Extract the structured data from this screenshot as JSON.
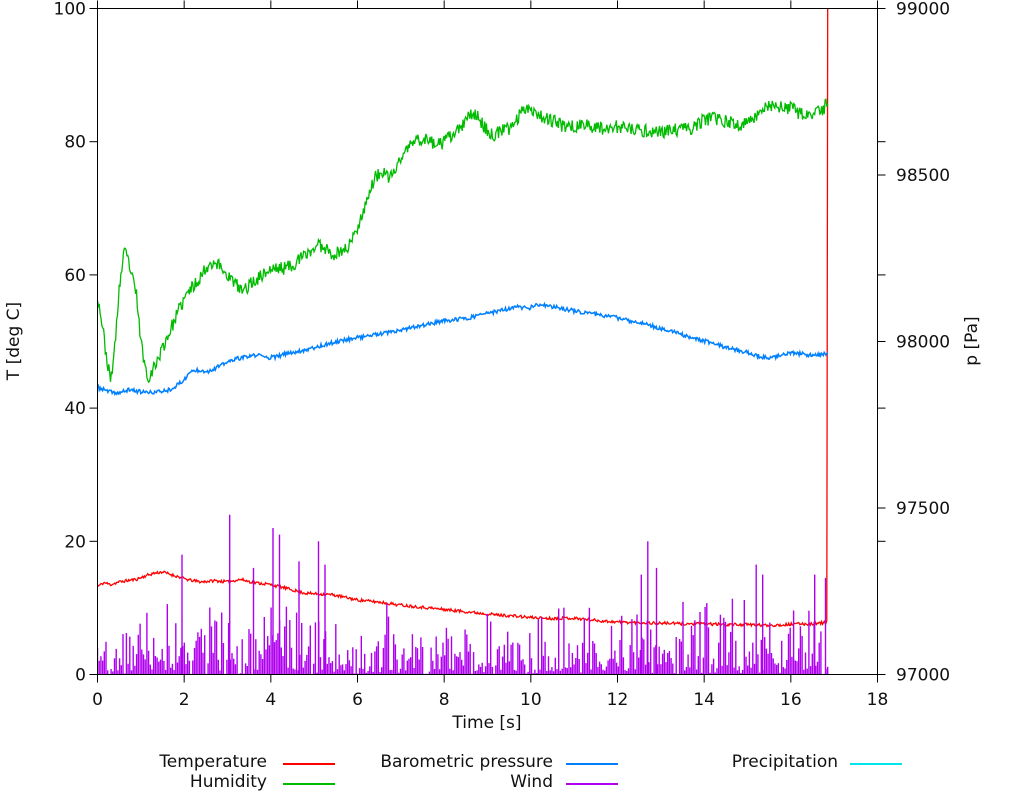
{
  "figure": {
    "background": "#ffffff",
    "plot_border_color": "#000000",
    "tick_label_color": "#111111"
  },
  "axes": {
    "x": {
      "title": "Time [s]",
      "min": 0,
      "max": 18,
      "tick_values": [
        0,
        2,
        4,
        6,
        8,
        10,
        12,
        14,
        16,
        18
      ],
      "tick_labels": [
        "0",
        "2",
        "4",
        "6",
        "8",
        "10",
        "12",
        "14",
        "16",
        "18"
      ]
    },
    "y_left": {
      "title": "T [deg C]",
      "min": 0,
      "max": 100,
      "tick_values": [
        0,
        20,
        40,
        60,
        80,
        100
      ],
      "tick_labels": [
        "0",
        "20",
        "40",
        "60",
        "80",
        "100"
      ]
    },
    "y_right": {
      "title": "p [Pa]",
      "min": 97000,
      "max": 99000,
      "tick_values": [
        97000,
        97500,
        98000,
        98500,
        99000
      ],
      "tick_labels": [
        "97000",
        "97500",
        "98000",
        "98500",
        "99000"
      ],
      "mirrored_left_tick_values": [
        20,
        40,
        60,
        80
      ]
    }
  },
  "legend": {
    "position": "below-plot",
    "entries": [
      {
        "label": "Temperature",
        "color": "#ff0000"
      },
      {
        "label": "Humidity",
        "color": "#00bb00"
      },
      {
        "label": "Barometric pressure",
        "color": "#0080ff"
      },
      {
        "label": "Wind",
        "color": "#b000f0"
      },
      {
        "label": "Precipitation",
        "color": "#00e5ee"
      }
    ]
  },
  "chart_data": {
    "type": "line",
    "title": "",
    "xlabel": "Time [s]",
    "ylabel_left": "T [deg C]",
    "ylabel_right": "p [Pa]",
    "x_range": [
      0,
      18
    ],
    "y_left_range": [
      0,
      100
    ],
    "y_right_range": [
      97000,
      99000
    ],
    "grid": false,
    "data_end_time": 16.85,
    "series": [
      {
        "name": "Temperature",
        "color": "#ff0000",
        "axis": "left",
        "width": 1.3,
        "noise": 0.22,
        "seed": 11,
        "note": "ends with vertical spike to 100 at t=16.85",
        "keypoints": [
          [
            0,
            13.2
          ],
          [
            0.15,
            13.8
          ],
          [
            0.3,
            13.5
          ],
          [
            0.5,
            13.9
          ],
          [
            0.7,
            14.1
          ],
          [
            0.9,
            14.3
          ],
          [
            1.1,
            14.8
          ],
          [
            1.3,
            15.2
          ],
          [
            1.5,
            15.4
          ],
          [
            1.7,
            15.0
          ],
          [
            1.9,
            14.6
          ],
          [
            2.1,
            14.2
          ],
          [
            2.4,
            13.9
          ],
          [
            2.7,
            14.1
          ],
          [
            3.0,
            13.9
          ],
          [
            3.3,
            14.3
          ],
          [
            3.6,
            13.8
          ],
          [
            3.9,
            13.6
          ],
          [
            4.2,
            13.2
          ],
          [
            4.5,
            12.7
          ],
          [
            4.8,
            12.2
          ],
          [
            5.1,
            12.1
          ],
          [
            5.4,
            12.0
          ],
          [
            5.7,
            11.6
          ],
          [
            6.0,
            11.2
          ],
          [
            6.3,
            11.0
          ],
          [
            6.6,
            10.8
          ],
          [
            6.9,
            10.5
          ],
          [
            7.2,
            10.3
          ],
          [
            7.5,
            10.1
          ],
          [
            7.8,
            9.9
          ],
          [
            8.1,
            9.7
          ],
          [
            8.4,
            9.5
          ],
          [
            8.7,
            9.3
          ],
          [
            9.0,
            9.1
          ],
          [
            9.3,
            8.9
          ],
          [
            9.6,
            8.8
          ],
          [
            9.9,
            8.6
          ],
          [
            10.2,
            8.5
          ],
          [
            10.5,
            8.4
          ],
          [
            10.8,
            8.5
          ],
          [
            11.1,
            8.4
          ],
          [
            11.4,
            8.2
          ],
          [
            11.7,
            8.0
          ],
          [
            12.0,
            7.9
          ],
          [
            12.3,
            7.8
          ],
          [
            12.6,
            7.8
          ],
          [
            12.9,
            7.7
          ],
          [
            13.2,
            7.7
          ],
          [
            13.5,
            7.6
          ],
          [
            13.8,
            7.6
          ],
          [
            14.1,
            7.6
          ],
          [
            14.4,
            7.5
          ],
          [
            14.7,
            7.5
          ],
          [
            15.0,
            7.5
          ],
          [
            15.3,
            7.4
          ],
          [
            15.6,
            7.4
          ],
          [
            15.9,
            7.5
          ],
          [
            16.2,
            7.6
          ],
          [
            16.5,
            7.6
          ],
          [
            16.8,
            7.8
          ],
          [
            16.84,
            8.0
          ],
          [
            16.85,
            100
          ]
        ]
      },
      {
        "name": "Humidity",
        "color": "#00bb00",
        "axis": "left",
        "width": 1.3,
        "noise": 1.0,
        "seed": 23,
        "keypoints": [
          [
            0,
            57
          ],
          [
            0.1,
            53
          ],
          [
            0.2,
            48
          ],
          [
            0.3,
            44
          ],
          [
            0.4,
            49
          ],
          [
            0.5,
            58
          ],
          [
            0.62,
            63.5
          ],
          [
            0.72,
            62
          ],
          [
            0.8,
            59.5
          ],
          [
            0.9,
            57
          ],
          [
            1.0,
            50
          ],
          [
            1.15,
            44.5
          ],
          [
            1.3,
            46
          ],
          [
            1.5,
            49
          ],
          [
            1.7,
            52
          ],
          [
            1.9,
            55
          ],
          [
            2.1,
            57.5
          ],
          [
            2.3,
            59
          ],
          [
            2.5,
            61
          ],
          [
            2.65,
            62
          ],
          [
            2.8,
            61.5
          ],
          [
            3.0,
            60
          ],
          [
            3.2,
            58.5
          ],
          [
            3.35,
            57.5
          ],
          [
            3.5,
            58.5
          ],
          [
            3.7,
            59.5
          ],
          [
            3.9,
            60.5
          ],
          [
            4.1,
            61
          ],
          [
            4.3,
            61
          ],
          [
            4.5,
            61.5
          ],
          [
            4.7,
            62.5
          ],
          [
            4.9,
            63.5
          ],
          [
            5.1,
            64.5
          ],
          [
            5.3,
            64
          ],
          [
            5.45,
            63
          ],
          [
            5.6,
            63.5
          ],
          [
            5.75,
            64
          ],
          [
            5.9,
            65.5
          ],
          [
            6.1,
            69
          ],
          [
            6.25,
            72
          ],
          [
            6.4,
            74.5
          ],
          [
            6.55,
            75.5
          ],
          [
            6.7,
            74.5
          ],
          [
            6.85,
            75.5
          ],
          [
            7.0,
            77.5
          ],
          [
            7.15,
            79
          ],
          [
            7.3,
            80
          ],
          [
            7.5,
            80.5
          ],
          [
            7.7,
            80
          ],
          [
            7.9,
            79.5
          ],
          [
            8.1,
            80.5
          ],
          [
            8.3,
            81.5
          ],
          [
            8.5,
            83
          ],
          [
            8.65,
            84.5
          ],
          [
            8.8,
            83.5
          ],
          [
            9.0,
            81.5
          ],
          [
            9.1,
            81
          ],
          [
            9.3,
            81.5
          ],
          [
            9.5,
            82
          ],
          [
            9.7,
            83.5
          ],
          [
            9.85,
            85.3
          ],
          [
            10.0,
            85
          ],
          [
            10.2,
            84
          ],
          [
            10.45,
            83.3
          ],
          [
            10.7,
            82.5
          ],
          [
            11.0,
            82.3
          ],
          [
            11.3,
            82.5
          ],
          [
            11.6,
            82
          ],
          [
            11.9,
            82.3
          ],
          [
            12.2,
            82
          ],
          [
            12.5,
            81.6
          ],
          [
            12.8,
            81.6
          ],
          [
            13.1,
            81.5
          ],
          [
            13.4,
            81.8
          ],
          [
            13.7,
            82
          ],
          [
            14.0,
            83.3
          ],
          [
            14.2,
            83.5
          ],
          [
            14.5,
            83
          ],
          [
            14.8,
            82.5
          ],
          [
            15.0,
            82.8
          ],
          [
            15.2,
            84
          ],
          [
            15.4,
            85.3
          ],
          [
            15.6,
            85.5
          ],
          [
            15.8,
            85
          ],
          [
            16.0,
            85
          ],
          [
            16.2,
            84.3
          ],
          [
            16.4,
            83.8
          ],
          [
            16.6,
            84.3
          ],
          [
            16.75,
            84.8
          ],
          [
            16.85,
            86.2
          ]
        ]
      },
      {
        "name": "Barometric pressure",
        "color": "#0080ff",
        "axis": "right",
        "width": 1.5,
        "noise": 6,
        "seed": 37,
        "keypoints": [
          [
            0,
            97862
          ],
          [
            0.3,
            97848
          ],
          [
            0.5,
            97845
          ],
          [
            0.75,
            97856
          ],
          [
            0.95,
            97850
          ],
          [
            1.2,
            97846
          ],
          [
            1.45,
            97850
          ],
          [
            1.65,
            97855
          ],
          [
            1.8,
            97865
          ],
          [
            2.0,
            97885
          ],
          [
            2.15,
            97910
          ],
          [
            2.35,
            97915
          ],
          [
            2.55,
            97910
          ],
          [
            2.75,
            97922
          ],
          [
            3.0,
            97938
          ],
          [
            3.2,
            97948
          ],
          [
            3.5,
            97955
          ],
          [
            3.7,
            97960
          ],
          [
            3.9,
            97952
          ],
          [
            4.1,
            97953
          ],
          [
            4.4,
            97965
          ],
          [
            4.7,
            97972
          ],
          [
            5.0,
            97982
          ],
          [
            5.3,
            97992
          ],
          [
            5.6,
            98002
          ],
          [
            5.9,
            98010
          ],
          [
            6.2,
            98016
          ],
          [
            6.5,
            98022
          ],
          [
            6.8,
            98028
          ],
          [
            7.1,
            98036
          ],
          [
            7.4,
            98046
          ],
          [
            7.7,
            98054
          ],
          [
            8.0,
            98062
          ],
          [
            8.3,
            98066
          ],
          [
            8.6,
            98072
          ],
          [
            8.9,
            98082
          ],
          [
            9.2,
            98090
          ],
          [
            9.5,
            98098
          ],
          [
            9.7,
            98104
          ],
          [
            9.95,
            98100
          ],
          [
            10.15,
            98110
          ],
          [
            10.4,
            98106
          ],
          [
            10.7,
            98100
          ],
          [
            11.0,
            98092
          ],
          [
            11.3,
            98086
          ],
          [
            11.6,
            98080
          ],
          [
            11.9,
            98074
          ],
          [
            12.2,
            98064
          ],
          [
            12.5,
            98058
          ],
          [
            12.8,
            98046
          ],
          [
            13.1,
            98036
          ],
          [
            13.4,
            98024
          ],
          [
            13.7,
            98012
          ],
          [
            14.0,
            98002
          ],
          [
            14.3,
            97990
          ],
          [
            14.6,
            97980
          ],
          [
            14.9,
            97970
          ],
          [
            15.2,
            97958
          ],
          [
            15.45,
            97950
          ],
          [
            15.7,
            97956
          ],
          [
            16.0,
            97966
          ],
          [
            16.3,
            97962
          ],
          [
            16.6,
            97958
          ],
          [
            16.85,
            97966
          ]
        ]
      },
      {
        "name": "Precipitation",
        "color": "#00e5ee",
        "axis": "left",
        "width": 1.3,
        "noise": 0,
        "seed": 5,
        "note": "constant zero, hidden beneath wind bars and axis",
        "keypoints": [
          [
            0,
            0
          ],
          [
            16.85,
            0
          ]
        ]
      },
      {
        "name": "Wind",
        "color": "#b000f0",
        "axis": "left",
        "type": "impulses",
        "width": 1.4,
        "seed": 42,
        "n": 430,
        "t_end": 16.85,
        "base_amplitude": 13.2,
        "zero_gap_fraction": 0.1,
        "amp_zones": [
          [
            0,
            5.6,
            1.0
          ],
          [
            5.6,
            12.3,
            0.84
          ],
          [
            12.3,
            17,
            1.0
          ]
        ],
        "spikes": [
          [
            1.95,
            18
          ],
          [
            3.05,
            24
          ],
          [
            3.6,
            16
          ],
          [
            4.05,
            22
          ],
          [
            4.2,
            21
          ],
          [
            4.65,
            17
          ],
          [
            5.1,
            20
          ],
          [
            5.25,
            16.5
          ],
          [
            12.55,
            15
          ],
          [
            12.7,
            20
          ],
          [
            12.9,
            16
          ],
          [
            15.2,
            16.5
          ],
          [
            15.35,
            15
          ],
          [
            16.55,
            15
          ],
          [
            16.8,
            14.5
          ]
        ]
      }
    ]
  }
}
